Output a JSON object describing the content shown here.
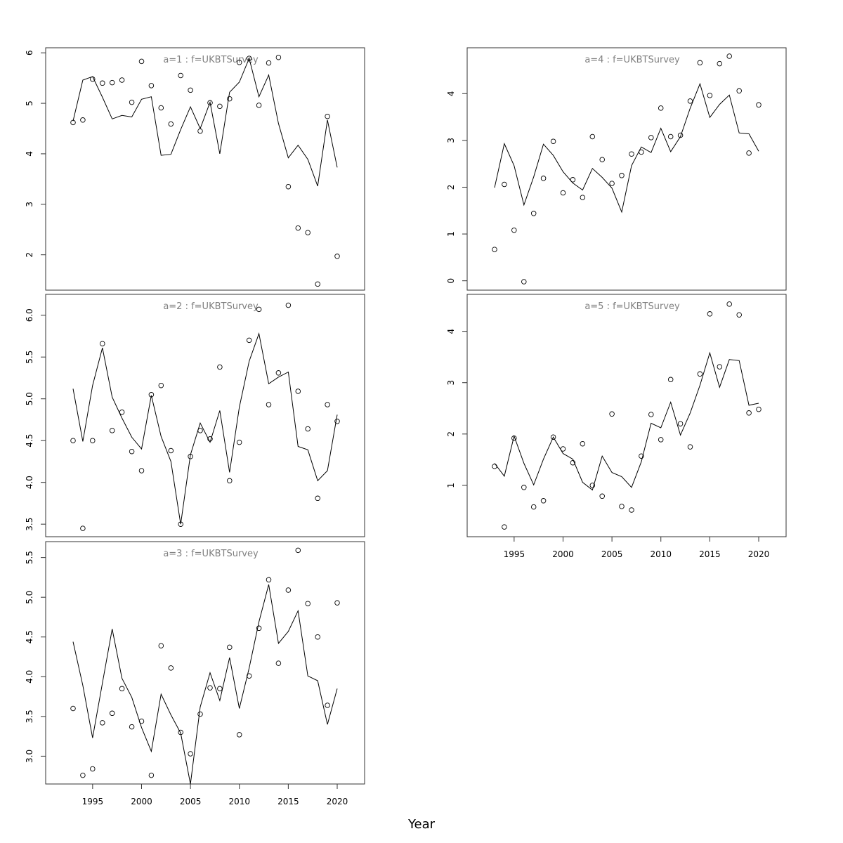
{
  "xlabel": "Year",
  "chart_data": [
    {
      "type": "line",
      "title": "a=1 : f=UKBTSurvey",
      "x": [
        1993,
        1994,
        1995,
        1996,
        1997,
        1998,
        1999,
        2000,
        2001,
        2002,
        2003,
        2004,
        2005,
        2006,
        2007,
        2008,
        2009,
        2010,
        2011,
        2012,
        2013,
        2014,
        2015,
        2016,
        2017,
        2018,
        2019,
        2020
      ],
      "xlim": [
        1990.2,
        2022.8
      ],
      "xticks": [
        1995,
        2000,
        2005,
        2010,
        2015,
        2020
      ],
      "show_xticks": false,
      "ylim": [
        1.3,
        6.1
      ],
      "yticks": [
        2,
        3,
        4,
        5,
        6
      ],
      "ytick_labels": [
        "2",
        "3",
        "4",
        "5",
        "6"
      ],
      "series": [
        {
          "kind": "line",
          "values": [
            4.65,
            5.46,
            5.53,
            5.12,
            4.69,
            4.76,
            4.73,
            5.08,
            5.13,
            3.97,
            3.99,
            4.48,
            4.93,
            4.5,
            5.02,
            4.0,
            5.22,
            5.42,
            5.89,
            5.13,
            5.56,
            4.6,
            3.92,
            4.17,
            3.89,
            3.36,
            4.67,
            3.73
          ]
        },
        {
          "kind": "points",
          "values": [
            4.62,
            4.67,
            5.48,
            5.4,
            5.41,
            5.46,
            5.02,
            5.83,
            5.35,
            4.91,
            4.59,
            5.55,
            5.26,
            4.45,
            5.01,
            4.94,
            5.09,
            5.81,
            5.89,
            4.96,
            5.8,
            5.91,
            3.35,
            2.53,
            2.44,
            1.42,
            4.74,
            1.97
          ]
        }
      ]
    },
    {
      "type": "line",
      "title": "a=2 : f=UKBTSurvey",
      "x": [
        1993,
        1994,
        1995,
        1996,
        1997,
        1998,
        1999,
        2000,
        2001,
        2002,
        2003,
        2004,
        2005,
        2006,
        2007,
        2008,
        2009,
        2010,
        2011,
        2012,
        2013,
        2014,
        2015,
        2016,
        2017,
        2018,
        2019,
        2020
      ],
      "xlim": [
        1990.2,
        2022.8
      ],
      "xticks": [
        1995,
        2000,
        2005,
        2010,
        2015,
        2020
      ],
      "show_xticks": false,
      "ylim": [
        3.35,
        6.25
      ],
      "yticks": [
        3.5,
        4.0,
        4.5,
        5.0,
        5.5,
        6.0
      ],
      "ytick_labels": [
        "3.5",
        "4.0",
        "4.5",
        "5.0",
        "5.5",
        "6.0"
      ],
      "series": [
        {
          "kind": "line",
          "values": [
            5.12,
            4.49,
            5.16,
            5.61,
            5.02,
            4.77,
            4.54,
            4.4,
            5.04,
            4.55,
            4.25,
            3.5,
            4.33,
            4.71,
            4.48,
            4.86,
            4.12,
            4.9,
            5.45,
            5.78,
            5.18,
            5.26,
            5.32,
            4.43,
            4.39,
            4.02,
            4.14,
            4.81
          ]
        },
        {
          "kind": "points",
          "values": [
            4.5,
            3.45,
            4.5,
            5.66,
            4.62,
            4.84,
            4.37,
            4.14,
            5.05,
            5.16,
            4.38,
            3.5,
            4.31,
            4.62,
            4.52,
            5.38,
            4.02,
            4.48,
            5.7,
            6.07,
            4.93,
            5.31,
            6.12,
            5.09,
            4.64,
            3.81,
            4.93,
            4.73
          ]
        }
      ]
    },
    {
      "type": "line",
      "title": "a=3 : f=UKBTSurvey",
      "x": [
        1993,
        1994,
        1995,
        1996,
        1997,
        1998,
        1999,
        2000,
        2001,
        2002,
        2003,
        2004,
        2005,
        2006,
        2007,
        2008,
        2009,
        2010,
        2011,
        2012,
        2013,
        2014,
        2015,
        2016,
        2017,
        2018,
        2019,
        2020
      ],
      "xlim": [
        1990.2,
        2022.8
      ],
      "xticks": [
        1995,
        2000,
        2005,
        2010,
        2015,
        2020
      ],
      "xtick_labels": [
        "1995",
        "2000",
        "2005",
        "2010",
        "2015",
        "2020"
      ],
      "show_xticks": true,
      "ylim": [
        2.65,
        5.7
      ],
      "yticks": [
        3.0,
        3.5,
        4.0,
        4.5,
        5.0,
        5.5
      ],
      "ytick_labels": [
        "3.0",
        "3.5",
        "4.0",
        "4.5",
        "5.0",
        "5.5"
      ],
      "series": [
        {
          "kind": "line",
          "values": [
            4.44,
            3.89,
            3.23,
            3.92,
            4.6,
            3.98,
            3.74,
            3.36,
            3.06,
            3.78,
            3.52,
            3.29,
            2.65,
            3.62,
            4.05,
            3.7,
            4.24,
            3.6,
            4.11,
            4.69,
            5.16,
            4.42,
            4.57,
            4.83,
            4.01,
            3.95,
            3.4,
            3.85
          ]
        },
        {
          "kind": "points",
          "values": [
            3.6,
            2.76,
            2.84,
            3.42,
            3.54,
            3.85,
            3.37,
            3.44,
            2.76,
            4.39,
            4.11,
            3.3,
            3.03,
            3.53,
            3.86,
            3.85,
            4.37,
            3.27,
            4.01,
            4.61,
            5.22,
            4.17,
            5.09,
            5.59,
            4.92,
            4.5,
            3.64,
            4.93
          ]
        }
      ]
    },
    {
      "type": "line",
      "title": "a=4 : f=UKBTSurvey",
      "x": [
        1993,
        1994,
        1995,
        1996,
        1997,
        1998,
        1999,
        2000,
        2001,
        2002,
        2003,
        2004,
        2005,
        2006,
        2007,
        2008,
        2009,
        2010,
        2011,
        2012,
        2013,
        2014,
        2015,
        2016,
        2017,
        2018,
        2019,
        2020
      ],
      "xlim": [
        1990.2,
        2022.8
      ],
      "xticks": [
        1995,
        2000,
        2005,
        2010,
        2015,
        2020
      ],
      "show_xticks": false,
      "ylim": [
        -0.2,
        4.98
      ],
      "yticks": [
        0,
        1,
        2,
        3,
        4
      ],
      "ytick_labels": [
        "0",
        "1",
        "2",
        "3",
        "4"
      ],
      "series": [
        {
          "kind": "line",
          "values": [
            1.99,
            2.93,
            2.46,
            1.62,
            2.22,
            2.92,
            2.68,
            2.33,
            2.09,
            1.94,
            2.4,
            2.21,
            1.98,
            1.47,
            2.46,
            2.86,
            2.74,
            3.26,
            2.76,
            3.08,
            3.69,
            4.21,
            3.49,
            3.77,
            3.97,
            3.16,
            3.14,
            2.77
          ]
        },
        {
          "kind": "points",
          "values": [
            0.67,
            2.06,
            1.08,
            -0.02,
            1.44,
            2.19,
            2.98,
            1.88,
            2.16,
            1.78,
            3.08,
            2.59,
            2.08,
            2.25,
            2.71,
            2.75,
            3.06,
            3.69,
            3.08,
            3.11,
            3.84,
            4.66,
            3.96,
            4.64,
            4.8,
            4.06,
            2.73,
            3.76
          ]
        }
      ]
    },
    {
      "type": "line",
      "title": "a=5 : f=UKBTSurvey",
      "x": [
        1993,
        1994,
        1995,
        1996,
        1997,
        1998,
        1999,
        2000,
        2001,
        2002,
        2003,
        2004,
        2005,
        2006,
        2007,
        2008,
        2009,
        2010,
        2011,
        2012,
        2013,
        2014,
        2015,
        2016,
        2017,
        2018,
        2019,
        2020
      ],
      "xlim": [
        1990.2,
        2022.8
      ],
      "xticks": [
        1995,
        2000,
        2005,
        2010,
        2015,
        2020
      ],
      "xtick_labels": [
        "1995",
        "2000",
        "2005",
        "2010",
        "2015",
        "2020"
      ],
      "show_xticks": true,
      "ylim": [
        0.0,
        4.72
      ],
      "yticks": [
        1,
        2,
        3,
        4
      ],
      "ytick_labels": [
        "1",
        "2",
        "3",
        "4"
      ],
      "series": [
        {
          "kind": "line",
          "values": [
            1.43,
            1.18,
            1.96,
            1.43,
            1.01,
            1.51,
            1.94,
            1.62,
            1.51,
            1.06,
            0.91,
            1.57,
            1.25,
            1.17,
            0.96,
            1.46,
            2.21,
            2.12,
            2.62,
            1.98,
            2.41,
            2.95,
            3.58,
            2.91,
            3.45,
            3.43,
            2.56,
            2.6
          ]
        },
        {
          "kind": "points",
          "values": [
            1.37,
            0.19,
            1.92,
            0.96,
            0.58,
            0.7,
            1.94,
            1.71,
            1.44,
            1.81,
            1.0,
            0.79,
            2.39,
            0.59,
            0.52,
            1.57,
            2.38,
            1.89,
            3.06,
            2.2,
            1.75,
            3.17,
            4.34,
            3.31,
            4.53,
            4.32,
            2.41,
            2.48
          ]
        }
      ]
    }
  ]
}
